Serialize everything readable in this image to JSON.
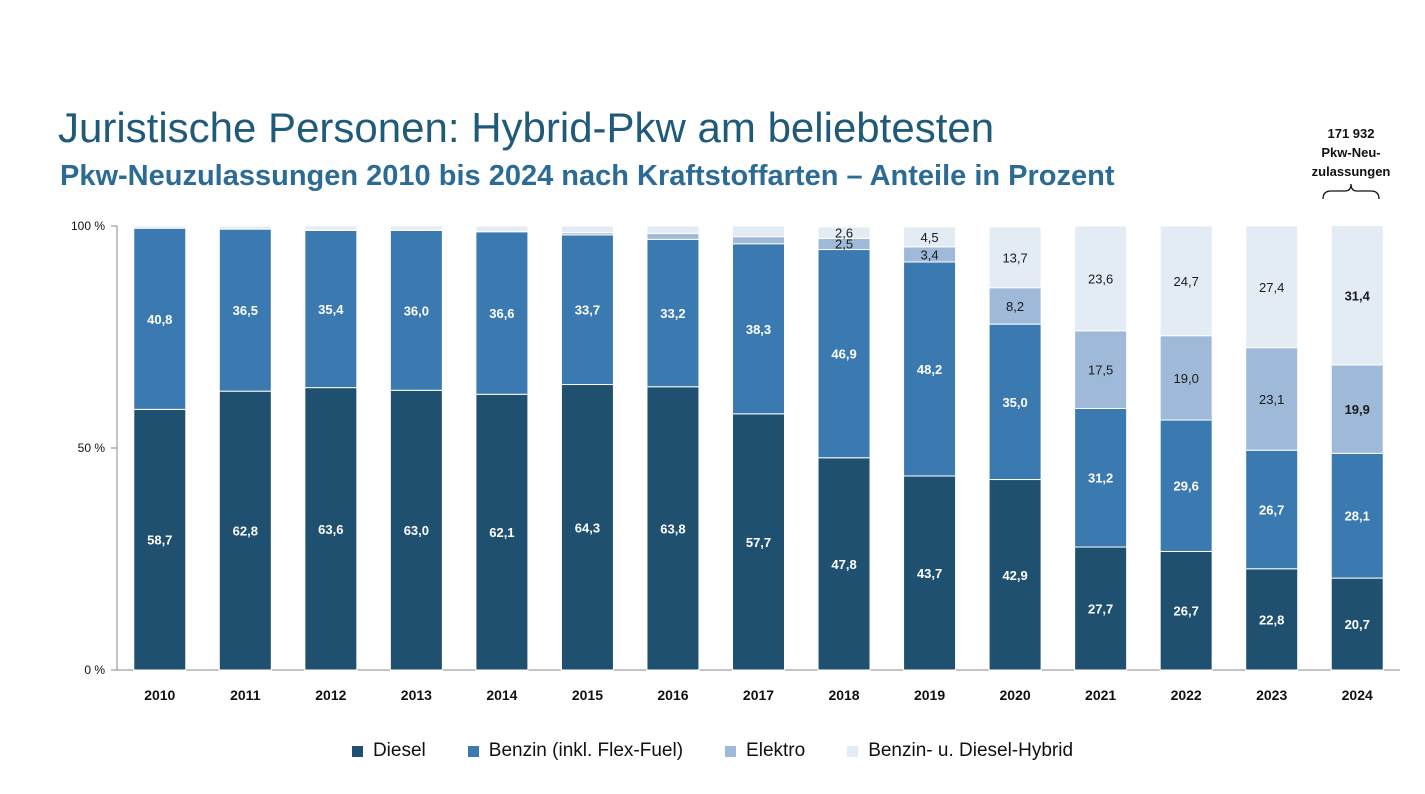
{
  "header": {
    "title": "Juristische Personen: Hybrid-Pkw am beliebtesten",
    "subtitle": "Pkw-Neuzulassungen 2010 bis 2024 nach Kraftstoffarten – Anteile in Prozent"
  },
  "callout": {
    "line1": "171 932",
    "line2": "Pkw-Neu-",
    "line3": "zulassungen",
    "brace_icon": "curly-brace-icon"
  },
  "colors": {
    "diesel": "#20506f",
    "benzin": "#3b79b1",
    "elektro": "#9ebad8",
    "hybrid": "#e3ebf5"
  },
  "chart_data": {
    "type": "bar",
    "stacked": true,
    "categories": [
      "2010",
      "2011",
      "2012",
      "2013",
      "2014",
      "2015",
      "2016",
      "2017",
      "2018",
      "2019",
      "2020",
      "2021",
      "2022",
      "2023",
      "2024"
    ],
    "ylim": [
      0,
      100
    ],
    "yticks": [
      "0 %",
      "50 %",
      "100 %"
    ],
    "series": [
      {
        "name": "Diesel",
        "color": "#20506f",
        "values": [
          58.7,
          62.8,
          63.6,
          63.0,
          62.1,
          64.3,
          63.8,
          57.7,
          47.8,
          43.7,
          42.9,
          27.7,
          26.7,
          22.8,
          20.7
        ],
        "labels": [
          "58,7",
          "62,8",
          "63,6",
          "63,0",
          "62,1",
          "64,3",
          "63,8",
          "57,7",
          "47,8",
          "43,7",
          "42,9",
          "27,7",
          "26,7",
          "22,8",
          "20,7"
        ]
      },
      {
        "name": "Benzin (inkl. Flex-Fuel)",
        "color": "#3b79b1",
        "values": [
          40.8,
          36.5,
          35.4,
          36.0,
          36.6,
          33.7,
          33.2,
          38.3,
          46.9,
          48.2,
          35.0,
          31.2,
          29.6,
          26.7,
          28.1
        ],
        "labels": [
          "40,8",
          "36,5",
          "35,4",
          "36,0",
          "36,6",
          "33,7",
          "33,2",
          "38,3",
          "46,9",
          "48,2",
          "35,0",
          "31,2",
          "29,6",
          "26,7",
          "28,1"
        ]
      },
      {
        "name": "Elektro",
        "color": "#9ebad8",
        "values": [
          0.0,
          0.0,
          0.1,
          0.1,
          0.1,
          0.5,
          1.3,
          1.6,
          2.5,
          3.4,
          8.2,
          17.5,
          19.0,
          23.1,
          19.9
        ],
        "labels": [
          "",
          "",
          "",
          "",
          "",
          "",
          "",
          "",
          "2,5",
          "3,4",
          "8,2",
          "17,5",
          "19,0",
          "23,1",
          "19,9"
        ]
      },
      {
        "name": "Benzin- u. Diesel-Hybrid",
        "color": "#e3ebf5",
        "values": [
          0.5,
          0.7,
          0.9,
          0.9,
          1.2,
          1.5,
          1.7,
          2.4,
          2.6,
          4.5,
          13.7,
          23.6,
          24.7,
          27.4,
          31.4
        ],
        "labels": [
          "",
          "",
          "",
          "",
          "",
          "",
          "",
          "",
          "2,6",
          "4,5",
          "13,7",
          "23,6",
          "24,7",
          "27,4",
          "31,4"
        ]
      }
    ]
  },
  "legend": [
    {
      "label": "Diesel",
      "color": "#20506f"
    },
    {
      "label": "Benzin (inkl. Flex-Fuel)",
      "color": "#3b79b1"
    },
    {
      "label": "Elektro",
      "color": "#9ebad8"
    },
    {
      "label": "Benzin- u. Diesel-Hybrid",
      "color": "#e3ebf5"
    }
  ]
}
